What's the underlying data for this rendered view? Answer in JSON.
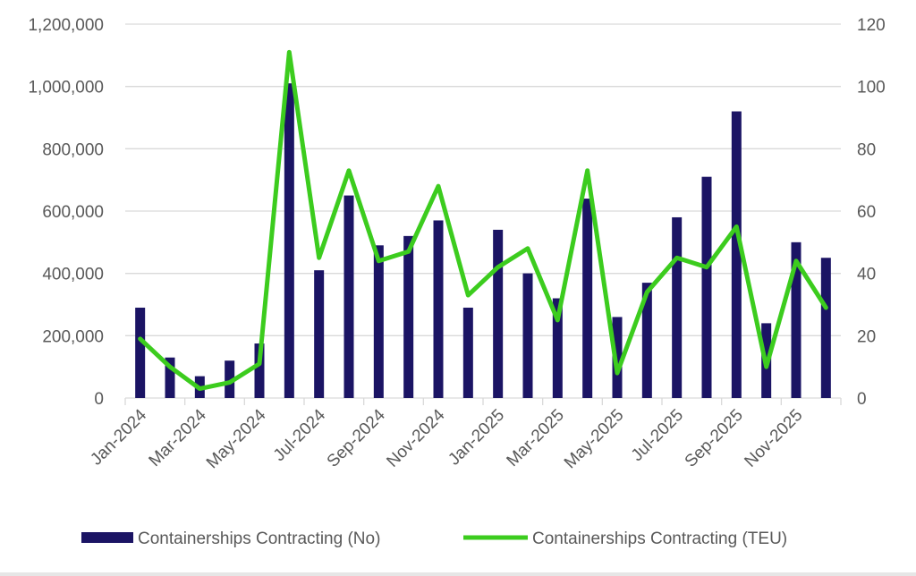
{
  "chart_data": {
    "type": "bar+line",
    "categories": [
      "Jan-2024",
      "Feb-2024",
      "Mar-2024",
      "Apr-2024",
      "May-2024",
      "Jun-2024",
      "Jul-2024",
      "Aug-2024",
      "Sep-2024",
      "Oct-2024",
      "Nov-2024",
      "Dec-2024",
      "Jan-2025",
      "Feb-2025",
      "Mar-2025",
      "Apr-2025",
      "May-2025",
      "Jun-2025",
      "Jul-2025",
      "Aug-2025",
      "Sep-2025",
      "Oct-2025",
      "Nov-2025",
      "Dec-2025"
    ],
    "x_tick_labels": [
      "Jan-2024",
      "Mar-2024",
      "May-2024",
      "Jul-2024",
      "Sep-2024",
      "Nov-2024",
      "Jan-2025",
      "Mar-2025",
      "May-2025",
      "Jul-2025",
      "Sep-2025",
      "Nov-2025"
    ],
    "series": [
      {
        "name": "Containerships Contracting (No)",
        "type": "bar",
        "axis": "left",
        "color": "#1b1464",
        "values": [
          290000,
          130000,
          70000,
          120000,
          175000,
          1010000,
          410000,
          650000,
          490000,
          520000,
          570000,
          290000,
          540000,
          400000,
          320000,
          640000,
          260000,
          370000,
          580000,
          710000,
          920000,
          240000,
          500000,
          450000
        ]
      },
      {
        "name": "Containerships Contracting (TEU)",
        "type": "line",
        "axis": "right",
        "color": "#3ccc1e",
        "values": [
          19,
          10,
          3,
          5,
          11,
          111,
          45,
          73,
          44,
          47,
          68,
          33,
          42,
          48,
          25,
          73,
          8,
          34,
          45,
          42,
          55,
          10,
          44,
          29
        ]
      }
    ],
    "y_left": {
      "range": [
        0,
        1200000
      ],
      "ticks": [
        "0",
        "200,000",
        "400,000",
        "600,000",
        "800,000",
        "1,000,000",
        "1,200,000"
      ]
    },
    "y_right": {
      "range": [
        0,
        120
      ],
      "ticks": [
        "0",
        "20",
        "40",
        "60",
        "80",
        "100",
        "120"
      ]
    },
    "grid": true,
    "legend_position": "bottom"
  }
}
